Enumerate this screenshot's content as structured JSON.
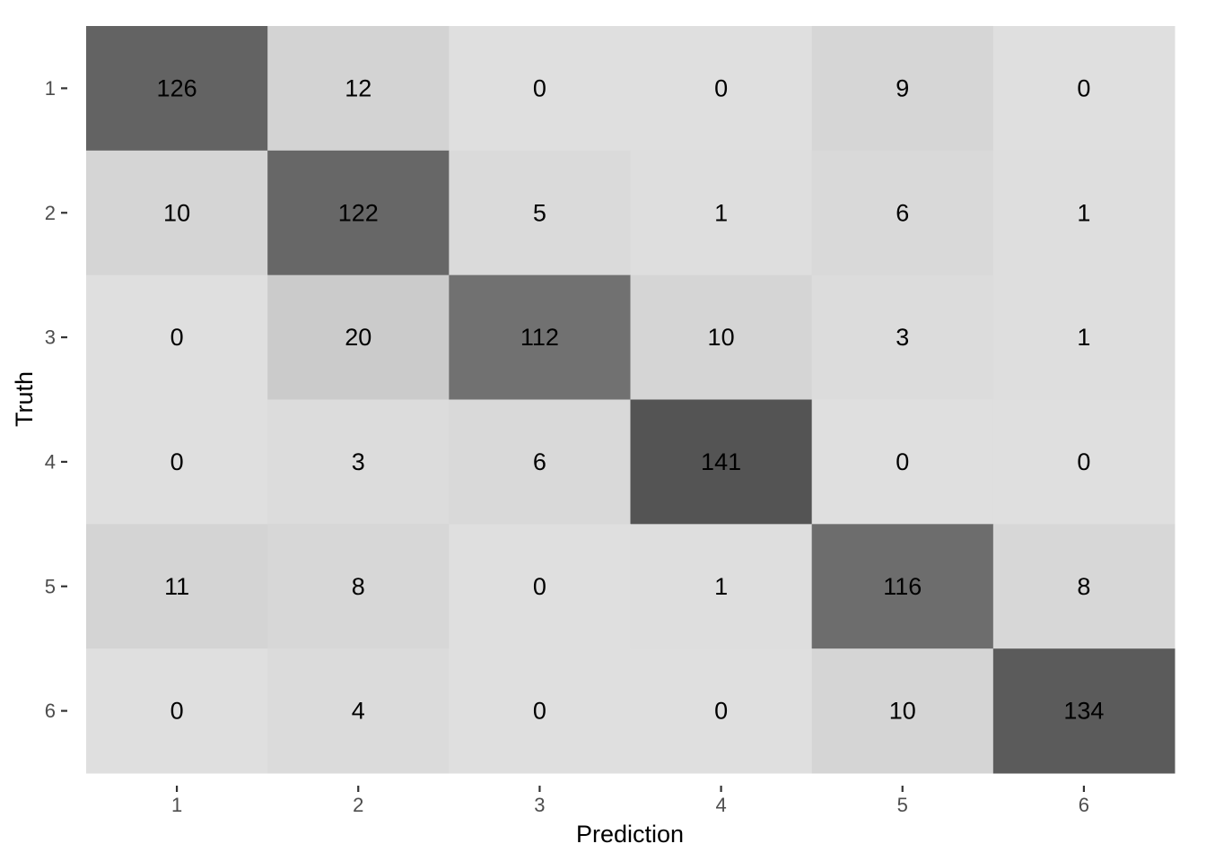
{
  "chart_data": {
    "type": "heatmap",
    "title": "",
    "xlabel": "Prediction",
    "ylabel": "Truth",
    "x_categories": [
      "1",
      "2",
      "3",
      "4",
      "5",
      "6"
    ],
    "y_categories": [
      "1",
      "2",
      "3",
      "4",
      "5",
      "6"
    ],
    "values": [
      [
        126,
        12,
        0,
        0,
        9,
        0
      ],
      [
        10,
        122,
        5,
        1,
        6,
        1
      ],
      [
        0,
        20,
        112,
        10,
        3,
        1
      ],
      [
        0,
        3,
        6,
        141,
        0,
        0
      ],
      [
        11,
        8,
        0,
        1,
        116,
        8
      ],
      [
        0,
        4,
        0,
        0,
        10,
        134
      ]
    ],
    "color_scale": {
      "low": "#dfdfdf",
      "high": "#545454"
    },
    "grid": false,
    "legend": "none"
  }
}
